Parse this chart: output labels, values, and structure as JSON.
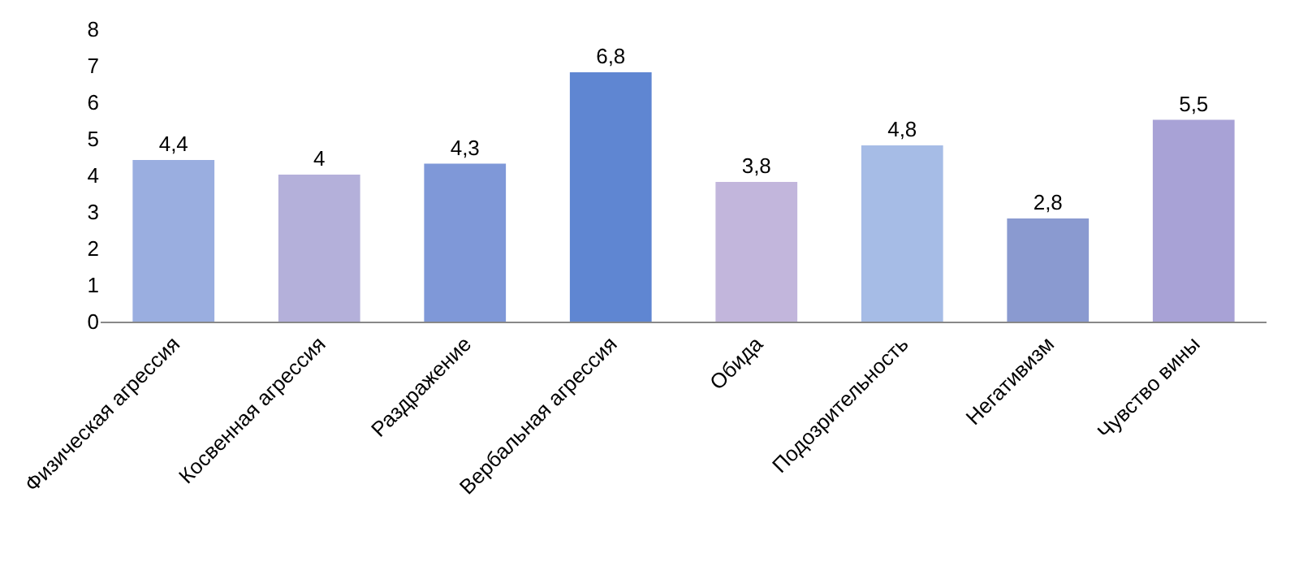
{
  "chart_data": {
    "type": "bar",
    "categories": [
      "Физическая агрессия",
      "Косвенная агрессия",
      "Раздражение",
      "Вербальная агрессия",
      "Обида",
      "Подозрительность",
      "Негативизм",
      "Чувство вины"
    ],
    "values": [
      4.4,
      4,
      4.3,
      6.8,
      3.8,
      4.8,
      2.8,
      5.5
    ],
    "value_labels": [
      "4,4",
      "4",
      "4,3",
      "6,8",
      "3,8",
      "4,8",
      "2,8",
      "5,5"
    ],
    "colors": [
      "#9aaee0",
      "#b4b0da",
      "#7f98d8",
      "#5f86d2",
      "#c2b6dc",
      "#a6bce6",
      "#8a9ad0",
      "#a8a2d6"
    ],
    "ylim": [
      0,
      8
    ],
    "yticks": [
      0,
      1,
      2,
      3,
      4,
      5,
      6,
      7,
      8
    ],
    "grid": false
  }
}
